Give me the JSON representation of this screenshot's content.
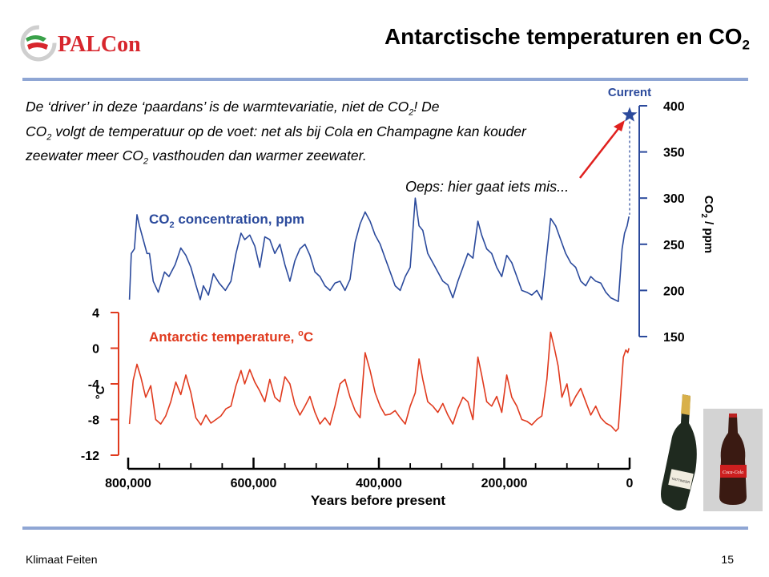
{
  "header": {
    "logo_text": "PALCon",
    "title": "Antarctische temperaturen en CO",
    "title_sub": "2"
  },
  "intro": {
    "p1": "De ‘driver’ in deze ‘paardans’ is de warmtevariatie, niet de CO",
    "p1_sub": "2",
    "p2": "!  De",
    "p3": "CO",
    "p3_sub": "2",
    "p4": " volgt de temperatuur op de voet: net als bij Cola en Champagne kan kouder zeewater meer CO",
    "p4_sub": "2",
    "p5": " vasthouden dan warmer zeewater."
  },
  "annotation": {
    "oops": "Oeps: hier gaat iets mis..."
  },
  "footer": {
    "left": "Klimaat Feiten",
    "page": "15"
  },
  "images": {
    "champagne_label": "TAITTINGER",
    "cola_label": "Coca-Cola"
  },
  "colors": {
    "co2": "#2b4a9c",
    "temp": "#e03a1e",
    "arrow": "#e0201e",
    "rule": "#8fa6d4"
  },
  "chart_data": {
    "type": "line",
    "xlabel": "Years before present",
    "x_ticks": [
      800000,
      600000,
      400000,
      200000,
      0
    ],
    "x_tick_labels": [
      "800,000",
      "600,000",
      "400,000",
      "200,000",
      "0"
    ],
    "xlim": [
      800000,
      0
    ],
    "current_label": "Current",
    "series": [
      {
        "name": "CO₂ concentration, ppm",
        "name_main": "CO",
        "name_sub": "2",
        "name_rest": " concentration, ppm",
        "axis": "right",
        "ylabel": "CO₂ / ppm",
        "ylabel_main": "CO",
        "ylabel_sub": "2",
        "ylabel_rest": " / ppm",
        "y_ticks": [
          400,
          350,
          300,
          250,
          200,
          150
        ],
        "ylim": [
          150,
          400
        ],
        "current": {
          "x": 0,
          "y": 390
        },
        "points": [
          [
            798000,
            190
          ],
          [
            795000,
            240
          ],
          [
            790000,
            245
          ],
          [
            786000,
            282
          ],
          [
            782000,
            270
          ],
          [
            776000,
            255
          ],
          [
            770000,
            240
          ],
          [
            766000,
            240
          ],
          [
            760000,
            210
          ],
          [
            752000,
            198
          ],
          [
            742000,
            220
          ],
          [
            735000,
            215
          ],
          [
            725000,
            228
          ],
          [
            716000,
            246
          ],
          [
            708000,
            238
          ],
          [
            700000,
            225
          ],
          [
            692000,
            206
          ],
          [
            685000,
            190
          ],
          [
            680000,
            205
          ],
          [
            672000,
            195
          ],
          [
            664000,
            218
          ],
          [
            655000,
            208
          ],
          [
            645000,
            200
          ],
          [
            636000,
            210
          ],
          [
            628000,
            240
          ],
          [
            620000,
            262
          ],
          [
            614000,
            255
          ],
          [
            606000,
            260
          ],
          [
            598000,
            248
          ],
          [
            590000,
            225
          ],
          [
            582000,
            258
          ],
          [
            574000,
            255
          ],
          [
            566000,
            240
          ],
          [
            558000,
            250
          ],
          [
            550000,
            228
          ],
          [
            542000,
            210
          ],
          [
            534000,
            232
          ],
          [
            526000,
            245
          ],
          [
            518000,
            250
          ],
          [
            510000,
            238
          ],
          [
            502000,
            220
          ],
          [
            494000,
            215
          ],
          [
            486000,
            205
          ],
          [
            478000,
            200
          ],
          [
            470000,
            208
          ],
          [
            462000,
            210
          ],
          [
            454000,
            200
          ],
          [
            446000,
            212
          ],
          [
            438000,
            252
          ],
          [
            430000,
            272
          ],
          [
            422000,
            285
          ],
          [
            414000,
            275
          ],
          [
            406000,
            260
          ],
          [
            398000,
            250
          ],
          [
            390000,
            235
          ],
          [
            382000,
            220
          ],
          [
            374000,
            205
          ],
          [
            366000,
            200
          ],
          [
            358000,
            215
          ],
          [
            350000,
            225
          ],
          [
            342000,
            300
          ],
          [
            336000,
            270
          ],
          [
            330000,
            265
          ],
          [
            322000,
            240
          ],
          [
            314000,
            230
          ],
          [
            306000,
            220
          ],
          [
            298000,
            210
          ],
          [
            290000,
            206
          ],
          [
            282000,
            192
          ],
          [
            274000,
            210
          ],
          [
            266000,
            225
          ],
          [
            258000,
            240
          ],
          [
            250000,
            235
          ],
          [
            242000,
            275
          ],
          [
            236000,
            260
          ],
          [
            228000,
            245
          ],
          [
            220000,
            240
          ],
          [
            212000,
            225
          ],
          [
            204000,
            215
          ],
          [
            196000,
            238
          ],
          [
            188000,
            230
          ],
          [
            180000,
            215
          ],
          [
            172000,
            200
          ],
          [
            164000,
            198
          ],
          [
            156000,
            195
          ],
          [
            148000,
            200
          ],
          [
            140000,
            190
          ],
          [
            132000,
            240
          ],
          [
            126000,
            278
          ],
          [
            118000,
            270
          ],
          [
            110000,
            255
          ],
          [
            102000,
            240
          ],
          [
            94000,
            230
          ],
          [
            86000,
            225
          ],
          [
            78000,
            210
          ],
          [
            70000,
            205
          ],
          [
            62000,
            215
          ],
          [
            54000,
            210
          ],
          [
            46000,
            208
          ],
          [
            38000,
            198
          ],
          [
            30000,
            192
          ],
          [
            24000,
            190
          ],
          [
            18000,
            188
          ],
          [
            12000,
            245
          ],
          [
            8000,
            262
          ],
          [
            4000,
            270
          ],
          [
            1000,
            280
          ]
        ]
      },
      {
        "name": "Antarctic temperature, °C",
        "name_main": "Antarctic temperature, ",
        "name_sup": "o",
        "name_rest": "C",
        "axis": "left",
        "ylabel": "°C",
        "y_ticks": [
          4,
          0,
          -4,
          -8,
          -12
        ],
        "ylim": [
          -12,
          4
        ],
        "points": [
          [
            798000,
            -8.5
          ],
          [
            792000,
            -3.6
          ],
          [
            786000,
            -1.8
          ],
          [
            780000,
            -3.2
          ],
          [
            772000,
            -5.5
          ],
          [
            764000,
            -4.2
          ],
          [
            756000,
            -8.0
          ],
          [
            748000,
            -8.5
          ],
          [
            740000,
            -7.6
          ],
          [
            732000,
            -6.0
          ],
          [
            724000,
            -3.8
          ],
          [
            716000,
            -5.2
          ],
          [
            708000,
            -3.0
          ],
          [
            700000,
            -5.0
          ],
          [
            692000,
            -7.8
          ],
          [
            684000,
            -8.6
          ],
          [
            676000,
            -7.5
          ],
          [
            668000,
            -8.4
          ],
          [
            660000,
            -8.0
          ],
          [
            652000,
            -7.6
          ],
          [
            644000,
            -6.8
          ],
          [
            636000,
            -6.5
          ],
          [
            628000,
            -4.2
          ],
          [
            620000,
            -2.5
          ],
          [
            614000,
            -4.0
          ],
          [
            606000,
            -2.4
          ],
          [
            598000,
            -3.8
          ],
          [
            590000,
            -4.8
          ],
          [
            582000,
            -6.0
          ],
          [
            574000,
            -3.5
          ],
          [
            566000,
            -5.5
          ],
          [
            558000,
            -6.0
          ],
          [
            550000,
            -3.2
          ],
          [
            542000,
            -4.0
          ],
          [
            534000,
            -6.3
          ],
          [
            526000,
            -7.5
          ],
          [
            518000,
            -6.5
          ],
          [
            510000,
            -5.4
          ],
          [
            502000,
            -7.2
          ],
          [
            494000,
            -8.5
          ],
          [
            486000,
            -7.8
          ],
          [
            478000,
            -8.6
          ],
          [
            470000,
            -6.5
          ],
          [
            462000,
            -4.0
          ],
          [
            454000,
            -3.5
          ],
          [
            446000,
            -5.5
          ],
          [
            438000,
            -7.0
          ],
          [
            430000,
            -7.8
          ],
          [
            422000,
            -0.5
          ],
          [
            414000,
            -2.5
          ],
          [
            406000,
            -5.0
          ],
          [
            398000,
            -6.5
          ],
          [
            390000,
            -7.5
          ],
          [
            382000,
            -7.4
          ],
          [
            374000,
            -7.0
          ],
          [
            366000,
            -7.8
          ],
          [
            358000,
            -8.5
          ],
          [
            350000,
            -6.5
          ],
          [
            342000,
            -5.0
          ],
          [
            336000,
            -1.2
          ],
          [
            330000,
            -3.5
          ],
          [
            322000,
            -6.0
          ],
          [
            314000,
            -6.5
          ],
          [
            306000,
            -7.2
          ],
          [
            298000,
            -6.2
          ],
          [
            290000,
            -7.5
          ],
          [
            282000,
            -8.5
          ],
          [
            274000,
            -6.8
          ],
          [
            266000,
            -5.5
          ],
          [
            258000,
            -6.0
          ],
          [
            250000,
            -8.0
          ],
          [
            242000,
            -1.0
          ],
          [
            236000,
            -3.0
          ],
          [
            228000,
            -6.0
          ],
          [
            220000,
            -6.5
          ],
          [
            212000,
            -5.4
          ],
          [
            204000,
            -7.2
          ],
          [
            196000,
            -3.0
          ],
          [
            188000,
            -5.5
          ],
          [
            180000,
            -6.5
          ],
          [
            172000,
            -8.0
          ],
          [
            164000,
            -8.2
          ],
          [
            156000,
            -8.6
          ],
          [
            148000,
            -8.0
          ],
          [
            140000,
            -7.6
          ],
          [
            132000,
            -3.5
          ],
          [
            126000,
            1.8
          ],
          [
            120000,
            0.0
          ],
          [
            114000,
            -2.0
          ],
          [
            108000,
            -5.5
          ],
          [
            100000,
            -4.0
          ],
          [
            94000,
            -6.5
          ],
          [
            86000,
            -5.4
          ],
          [
            78000,
            -4.5
          ],
          [
            70000,
            -6.0
          ],
          [
            62000,
            -7.5
          ],
          [
            54000,
            -6.5
          ],
          [
            46000,
            -7.8
          ],
          [
            38000,
            -8.4
          ],
          [
            30000,
            -8.7
          ],
          [
            22000,
            -9.3
          ],
          [
            18000,
            -9.0
          ],
          [
            14000,
            -5.0
          ],
          [
            10000,
            -1.0
          ],
          [
            6000,
            -0.2
          ],
          [
            3000,
            -0.5
          ],
          [
            1000,
            0.0
          ]
        ]
      }
    ]
  }
}
